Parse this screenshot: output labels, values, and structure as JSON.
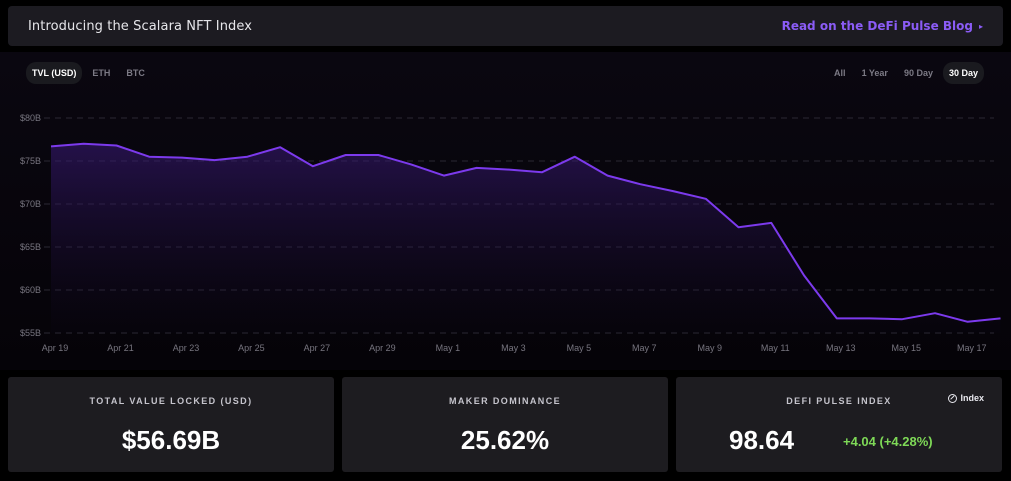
{
  "banner": {
    "title": "Introducing the Scalara NFT Index",
    "link_label": "Read on the DeFi Pulse Blog",
    "link_color": "#8b5cf6"
  },
  "toggles": {
    "metric": [
      {
        "label": "TVL (USD)",
        "active": true
      },
      {
        "label": "ETH",
        "active": false
      },
      {
        "label": "BTC",
        "active": false
      }
    ],
    "range": [
      {
        "label": "All",
        "active": false
      },
      {
        "label": "1 Year",
        "active": false
      },
      {
        "label": "90 Day",
        "active": false
      },
      {
        "label": "30 Day",
        "active": true
      }
    ]
  },
  "chart_data": {
    "type": "area",
    "title": "",
    "xlabel": "",
    "ylabel": "",
    "line_color": "#7c3aed",
    "ylim": [
      55,
      80
    ],
    "y_ticks": [
      80,
      75,
      70,
      65,
      60,
      55
    ],
    "y_tick_labels": [
      "$80B",
      "$75B",
      "$70B",
      "$65B",
      "$60B",
      "$55B"
    ],
    "x_tick_labels": [
      "Apr 19",
      "Apr 21",
      "Apr 23",
      "Apr 25",
      "Apr 27",
      "Apr 29",
      "May 1",
      "May 3",
      "May 5",
      "May 7",
      "May 9",
      "May 11",
      "May 13",
      "May 15",
      "May 17"
    ],
    "x": [
      "Apr 19",
      "Apr 20",
      "Apr 21",
      "Apr 22",
      "Apr 23",
      "Apr 24",
      "Apr 25",
      "Apr 26",
      "Apr 27",
      "Apr 28",
      "Apr 29",
      "Apr 30",
      "May 1",
      "May 2",
      "May 3",
      "May 4",
      "May 5",
      "May 6",
      "May 7",
      "May 8",
      "May 9",
      "May 10",
      "May 11",
      "May 12",
      "May 13",
      "May 14",
      "May 15",
      "May 16",
      "May 17",
      "May 17.5"
    ],
    "values": [
      76.7,
      77.0,
      76.8,
      75.5,
      75.4,
      75.1,
      75.5,
      76.6,
      74.4,
      75.7,
      75.7,
      74.6,
      73.3,
      74.2,
      74.0,
      73.7,
      75.5,
      73.3,
      72.3,
      71.5,
      70.6,
      67.3,
      67.8,
      61.7,
      56.7,
      56.7,
      56.6,
      57.3,
      56.3,
      56.7
    ],
    "grid": true
  },
  "cards": {
    "tvl": {
      "label": "TOTAL VALUE LOCKED (USD)",
      "value": "$56.69B"
    },
    "maker": {
      "label": "MAKER DOMINANCE",
      "value": "25.62%"
    },
    "index": {
      "label": "DEFI PULSE INDEX",
      "badge": "Index",
      "value": "98.64",
      "change": "+4.04  (+4.28%)",
      "change_color": "#7ed957"
    }
  }
}
